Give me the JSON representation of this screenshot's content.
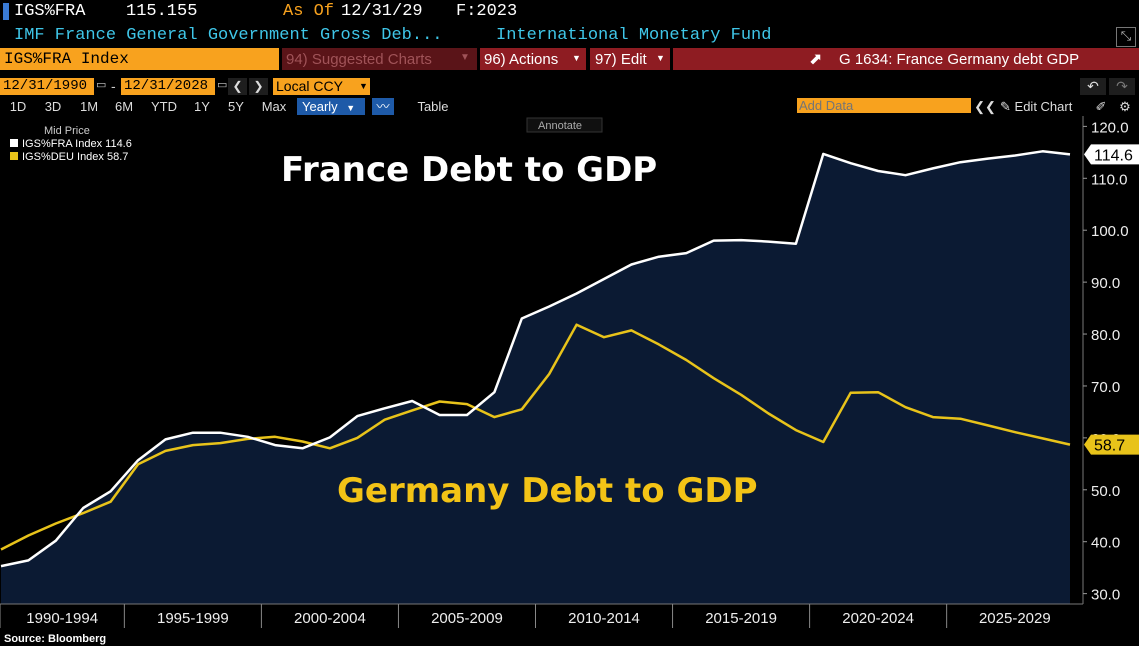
{
  "header": {
    "ticker": "IGS%FRA",
    "price": "115.155",
    "as_of_label": "As Of",
    "as_of_date": "12/31/29",
    "freq": "F:2023",
    "description": "IMF France General Government Gross Deb...",
    "source_name": "International Monetary Fund"
  },
  "toolbar": {
    "security": "IGS%FRA Index",
    "suggested": "94) Suggested Charts",
    "actions": "96) Actions",
    "edit": "97) Edit",
    "chart_title": "G 1634: France Germany debt GDP"
  },
  "range": {
    "start": "12/31/1990",
    "sep": "-",
    "end": "12/31/2028",
    "currency": "Local CCY"
  },
  "periods": [
    "1D",
    "3D",
    "1M",
    "6M",
    "YTD",
    "1Y",
    "5Y",
    "Max"
  ],
  "controls": {
    "frequency": "Yearly",
    "table": "Table",
    "add_data_placeholder": "Add Data",
    "edit_chart": "Edit Chart",
    "annotate": "Annotate"
  },
  "legend": {
    "title": "Mid Price",
    "items": [
      "IGS%FRA Index 114.6",
      "IGS%DEU Index 58.7"
    ]
  },
  "footer": {
    "source": "Source: Bloomberg"
  },
  "colors": {
    "france": "#ffffff",
    "germany": "#e8c31a",
    "area": "#0b1a33",
    "accent": "#f8a21e"
  },
  "chart_data": {
    "type": "area",
    "annotations": [
      "France Debt to GDP",
      "Germany Debt to GDP"
    ],
    "x": [
      1990,
      1991,
      1992,
      1993,
      1994,
      1995,
      1996,
      1997,
      1998,
      1999,
      2000,
      2001,
      2002,
      2003,
      2004,
      2005,
      2006,
      2007,
      2008,
      2009,
      2010,
      2011,
      2012,
      2013,
      2014,
      2015,
      2016,
      2017,
      2018,
      2019,
      2020,
      2021,
      2022,
      2023,
      2024,
      2025,
      2026,
      2027,
      2028,
      2029
    ],
    "x_tick_labels": [
      "1990-1994",
      "1995-1999",
      "2000-2004",
      "2005-2009",
      "2010-2014",
      "2015-2019",
      "2020-2024",
      "2025-2029"
    ],
    "y_ticks": [
      30,
      40,
      50,
      60,
      70,
      80,
      90,
      100,
      110,
      120
    ],
    "ylim": [
      28,
      122
    ],
    "series": [
      {
        "name": "IGS%FRA Index",
        "last_label": "114.6",
        "values": [
          35.3,
          36.4,
          40.2,
          46.5,
          49.7,
          55.7,
          59.7,
          61.0,
          61.0,
          60.2,
          58.6,
          58.0,
          60.1,
          64.2,
          65.7,
          67.1,
          64.4,
          64.4,
          68.8,
          83.0,
          85.3,
          87.8,
          90.6,
          93.4,
          94.9,
          95.6,
          98.0,
          98.1,
          97.8,
          97.4,
          114.7,
          112.9,
          111.4,
          110.6,
          111.9,
          113.1,
          113.8,
          114.4,
          115.2,
          114.6
        ]
      },
      {
        "name": "IGS%DEU Index",
        "last_label": "58.7",
        "values": [
          38.5,
          41.2,
          43.5,
          45.5,
          47.7,
          54.9,
          57.5,
          58.6,
          59.0,
          59.8,
          60.2,
          59.3,
          58.0,
          60.0,
          63.5,
          65.3,
          67.0,
          66.5,
          64.0,
          65.5,
          72.3,
          81.8,
          79.4,
          80.7,
          78.0,
          75.0,
          71.5,
          68.3,
          64.7,
          61.5,
          59.2,
          68.7,
          68.8,
          65.9,
          64.0,
          63.7,
          62.4,
          61.1,
          59.9,
          58.7
        ]
      }
    ]
  }
}
